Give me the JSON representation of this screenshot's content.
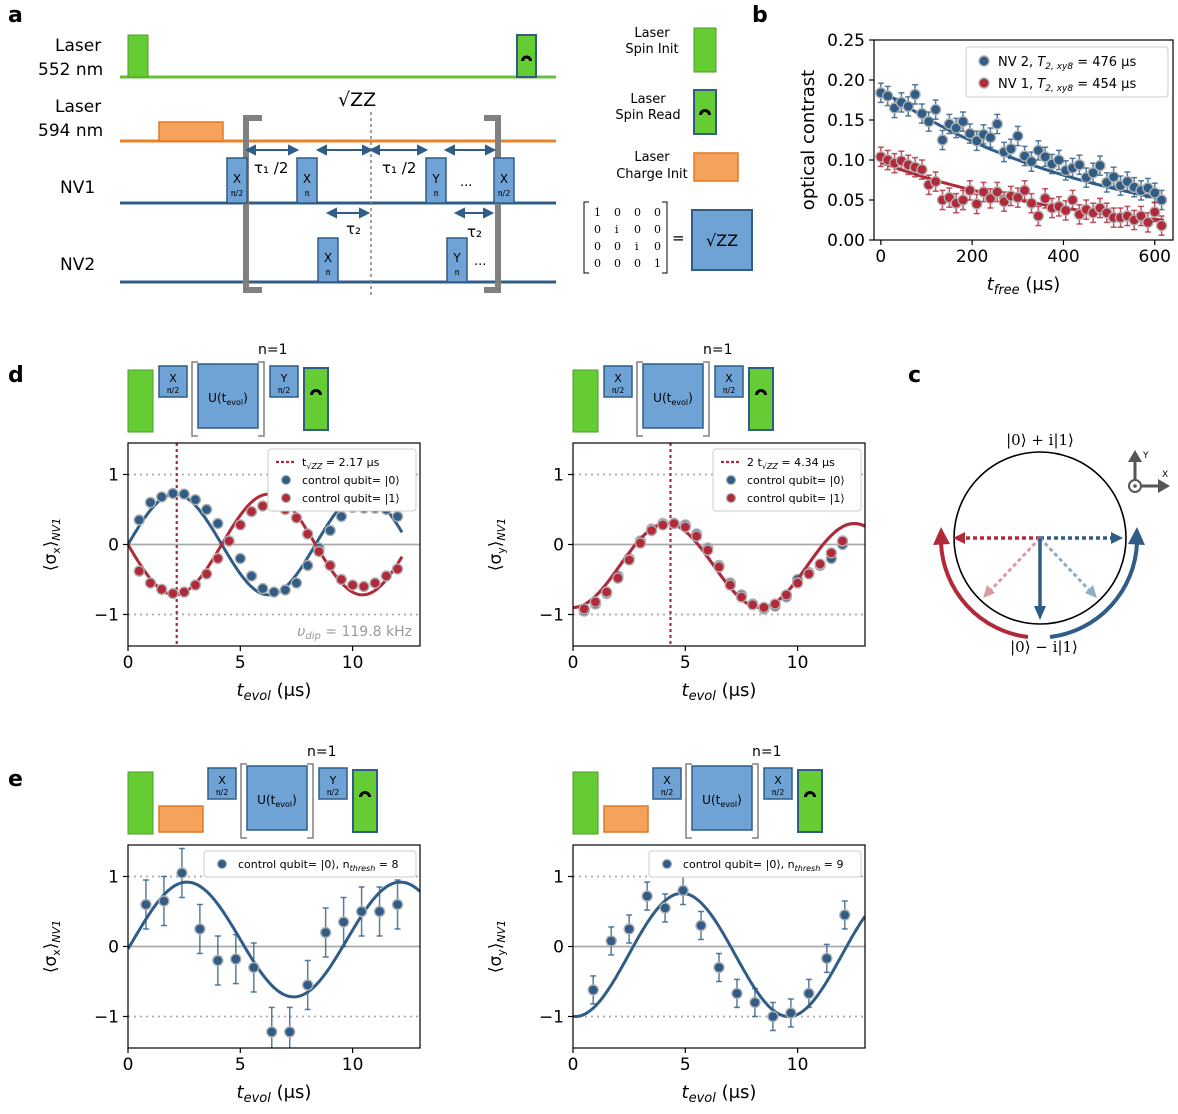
{
  "panels": {
    "a": "a",
    "b": "b",
    "c": "c",
    "d": "d",
    "e": "e"
  },
  "seq_a": {
    "laser552": [
      "Laser",
      "552 nm"
    ],
    "laser594": [
      "Laser",
      "594 nm"
    ],
    "nv1": "NV1",
    "nv2": "NV2",
    "sqrt_zz": "√ZZ",
    "tau1_half": "τ₁ /2",
    "tau2": "τ₂",
    "ellipsis": "...",
    "pulses": {
      "x": "X",
      "y": "Y",
      "pi": "π",
      "pi_half": "π/2"
    },
    "legend": {
      "spin_init": [
        "Laser",
        "Spin Init"
      ],
      "spin_read": [
        "Laser",
        "Spin Read"
      ],
      "charge_init": [
        "Laser",
        "Charge Init"
      ]
    },
    "matrix": [
      [
        "1",
        "0",
        "0",
        "0"
      ],
      [
        "0",
        "i",
        "0",
        "0"
      ],
      [
        "0",
        "0",
        "i",
        "0"
      ],
      [
        "0",
        "0",
        "0",
        "1"
      ]
    ],
    "equals": "=",
    "matrix_box": "√ZZ"
  },
  "seq_boxes": {
    "u": "U(t",
    "u_sub": "evol",
    "u_close": ")",
    "n": "n=1",
    "x": "X",
    "y": "Y",
    "pi_half": "π/2"
  },
  "bloch": {
    "top": "|0⟩ + i|1⟩",
    "bottom": "|0⟩ − i|1⟩",
    "axis_y": "Y",
    "axis_x": "X",
    "colors": {
      "red": "#b22a3a",
      "blue": "#2f5d87",
      "red_light": "#d89aa3",
      "blue_light": "#8eadc8"
    }
  },
  "colors": {
    "blue": "#2f5d87",
    "red": "#b22a3a",
    "green": "#66cc33",
    "orange": "#f5a25d",
    "box": "#6fa3d5",
    "line_green": "#6abf3a",
    "line_orange": "#e8832a",
    "line_blue": "#2f5d87"
  },
  "chart_data": [
    {
      "id": "b",
      "type": "scatter",
      "xlabel": "t_free (μs)",
      "ylabel": "optical contrast",
      "xlim": [
        -15,
        640
      ],
      "ylim": [
        0.0,
        0.25
      ],
      "xticks": [
        0,
        200,
        400,
        600
      ],
      "yticks": [
        0.0,
        0.05,
        0.1,
        0.15,
        0.2,
        0.25
      ],
      "ytick_labels": [
        "0.00",
        "0.05",
        "0.10",
        "0.15",
        "0.20",
        "0.25"
      ],
      "legend": "top-right",
      "series": [
        {
          "name": "NV 2, T2,xy8 = 476 μs",
          "label_main": "NV 2, ",
          "label_T": "T",
          "label_sub": "2, xy8",
          "label_val": " = 476 μs",
          "color": "#2f5d87",
          "x": [
            0,
            15,
            30,
            45,
            60,
            75,
            90,
            105,
            120,
            135,
            150,
            165,
            180,
            195,
            210,
            225,
            240,
            255,
            270,
            285,
            300,
            315,
            330,
            345,
            360,
            375,
            390,
            405,
            420,
            435,
            450,
            465,
            480,
            495,
            510,
            525,
            540,
            555,
            570,
            585,
            600,
            615
          ],
          "y": [
            0.184,
            0.18,
            0.165,
            0.172,
            0.167,
            0.182,
            0.158,
            0.148,
            0.163,
            0.125,
            0.145,
            0.14,
            0.148,
            0.133,
            0.124,
            0.132,
            0.128,
            0.145,
            0.11,
            0.114,
            0.13,
            0.105,
            0.098,
            0.112,
            0.104,
            0.095,
            0.1,
            0.087,
            0.09,
            0.094,
            0.078,
            0.084,
            0.093,
            0.072,
            0.079,
            0.068,
            0.073,
            0.066,
            0.062,
            0.065,
            0.059,
            0.05
          ],
          "err": 0.012,
          "fit": {
            "a": 0.188,
            "T": 476
          }
        },
        {
          "name": "NV 1, T2,xy8 = 454 μs",
          "label_main": "NV 1, ",
          "label_T": "T",
          "label_sub": "2, xy8",
          "label_val": " = 454 μs",
          "color": "#b22a3a",
          "x": [
            0,
            15,
            30,
            45,
            60,
            75,
            90,
            105,
            120,
            135,
            150,
            165,
            180,
            195,
            210,
            225,
            240,
            255,
            270,
            285,
            300,
            315,
            330,
            345,
            360,
            375,
            390,
            405,
            420,
            435,
            450,
            465,
            480,
            495,
            510,
            525,
            540,
            555,
            570,
            585,
            600,
            615
          ],
          "y": [
            0.104,
            0.1,
            0.096,
            0.099,
            0.094,
            0.091,
            0.088,
            0.069,
            0.073,
            0.05,
            0.053,
            0.046,
            0.05,
            0.062,
            0.045,
            0.06,
            0.052,
            0.06,
            0.048,
            0.055,
            0.053,
            0.062,
            0.046,
            0.03,
            0.052,
            0.04,
            0.042,
            0.037,
            0.05,
            0.032,
            0.038,
            0.034,
            0.04,
            0.034,
            0.028,
            0.028,
            0.03,
            0.025,
            0.03,
            0.022,
            0.035,
            0.018
          ],
          "err": 0.012,
          "fit": {
            "a": 0.097,
            "T": 454
          }
        }
      ]
    },
    {
      "id": "d-left",
      "type": "scatter",
      "xlabel": "t_evol (μs)",
      "ylabel": "⟨σx⟩NV1",
      "xlim": [
        0,
        13
      ],
      "ylim": [
        -1.45,
        1.45
      ],
      "xticks": [
        0,
        5,
        10
      ],
      "yticks": [
        -1,
        0,
        1
      ],
      "ytick_labels": [
        "−1",
        "0",
        "1"
      ],
      "vline": 2.17,
      "annotation": "υ_dip = 119.8 kHz",
      "annotation_main": "υ",
      "annotation_sub": "dip",
      "annotation_val": " = 119.8 kHz",
      "legend": "top-right",
      "legend_entries": [
        {
          "kind": "vline",
          "parts": [
            "t",
            "√ZZ",
            " = 2.17 μs"
          ],
          "color": "#b22a3a"
        },
        {
          "kind": "point",
          "text": "control qubit= |0⟩",
          "color": "#2f5d87"
        },
        {
          "kind": "point",
          "text": "control qubit= |1⟩",
          "color": "#b22a3a"
        }
      ],
      "series": [
        {
          "name": "control qubit= |0⟩",
          "color": "#2f5d87",
          "sign": 1,
          "period": 8.35,
          "x": [
            0.5,
            1,
            1.5,
            2,
            2.5,
            3,
            3.5,
            4,
            4.5,
            5,
            5.5,
            6,
            6.5,
            7,
            7.5,
            8,
            8.5,
            9,
            9.5,
            10,
            10.5,
            11,
            11.5,
            12
          ],
          "y": [
            0.35,
            0.6,
            0.68,
            0.73,
            0.72,
            0.64,
            0.5,
            0.3,
            0.05,
            -0.2,
            -0.45,
            -0.63,
            -0.68,
            -0.65,
            -0.55,
            -0.3,
            -0.05,
            0.2,
            0.4,
            0.53,
            0.52,
            0.52,
            0.5,
            0.4
          ]
        },
        {
          "name": "control qubit= |1⟩",
          "color": "#b22a3a",
          "sign": -1,
          "period": 8.35,
          "x": [
            0.5,
            1,
            1.5,
            2,
            2.5,
            3,
            3.5,
            4,
            4.5,
            5,
            5.5,
            6,
            6.5,
            7,
            7.5,
            8,
            8.5,
            9,
            9.5,
            10,
            10.5,
            11,
            11.5,
            12
          ],
          "y": [
            -0.38,
            -0.55,
            -0.64,
            -0.7,
            -0.68,
            -0.58,
            -0.42,
            -0.2,
            0.05,
            0.28,
            0.47,
            0.55,
            0.55,
            0.5,
            0.38,
            0.15,
            -0.1,
            -0.3,
            -0.5,
            -0.58,
            -0.6,
            -0.55,
            -0.45,
            -0.35
          ]
        }
      ]
    },
    {
      "id": "d-right",
      "type": "scatter",
      "xlabel": "t_evol (μs)",
      "ylabel": "⟨σy⟩NV1",
      "xlim": [
        0,
        13
      ],
      "ylim": [
        -1.45,
        1.45
      ],
      "xticks": [
        0,
        5,
        10
      ],
      "yticks": [
        -1,
        0,
        1
      ],
      "ytick_labels": [
        "−1",
        "0",
        "1"
      ],
      "vline": 4.34,
      "legend": "top-right",
      "legend_entries": [
        {
          "kind": "vline",
          "parts": [
            "2 t",
            "√ZZ",
            " = 4.34 μs"
          ],
          "color": "#b22a3a"
        },
        {
          "kind": "point",
          "text": "control qubit= |0⟩",
          "color": "#2f5d87"
        },
        {
          "kind": "point",
          "text": "control qubit= |1⟩",
          "color": "#b22a3a"
        }
      ],
      "series": [
        {
          "name": "control qubit= |0⟩",
          "color": "#2f5d87",
          "x": [
            0.5,
            1,
            1.5,
            2,
            2.5,
            3,
            3.5,
            4,
            4.5,
            5,
            5.5,
            6,
            6.5,
            7,
            7.5,
            8,
            8.5,
            9,
            9.5,
            10,
            10.5,
            11,
            11.5,
            12
          ],
          "y": [
            -0.95,
            -0.85,
            -0.7,
            -0.45,
            -0.2,
            0.05,
            0.22,
            0.3,
            0.3,
            0.28,
            0.15,
            -0.05,
            -0.3,
            -0.55,
            -0.72,
            -0.85,
            -0.92,
            -0.88,
            -0.75,
            -0.5,
            -0.4,
            -0.3,
            -0.2,
            0.0
          ]
        },
        {
          "name": "control qubit= |1⟩",
          "color": "#b22a3a",
          "x": [
            0.5,
            1,
            1.5,
            2,
            2.5,
            3,
            3.5,
            4,
            4.5,
            5,
            5.5,
            6,
            6.5,
            7,
            7.5,
            8,
            8.5,
            9,
            9.5,
            10,
            10.5,
            11,
            11.5,
            12
          ],
          "y": [
            -0.92,
            -0.82,
            -0.68,
            -0.48,
            -0.22,
            0.02,
            0.2,
            0.28,
            0.3,
            0.25,
            0.12,
            -0.08,
            -0.32,
            -0.58,
            -0.75,
            -0.86,
            -0.9,
            -0.85,
            -0.72,
            -0.55,
            -0.42,
            -0.28,
            -0.12,
            0.05
          ]
        }
      ]
    },
    {
      "id": "e-left",
      "type": "scatter",
      "xlabel": "t_evol (μs)",
      "ylabel": "⟨σx⟩NV1",
      "xlim": [
        0,
        13
      ],
      "ylim": [
        -1.45,
        1.45
      ],
      "xticks": [
        0,
        5,
        10
      ],
      "yticks": [
        -1,
        0,
        1
      ],
      "ytick_labels": [
        "−1",
        "0",
        "1"
      ],
      "legend": "top-right",
      "legend_entries": [
        {
          "kind": "point",
          "parts": [
            "control qubit= |0⟩, n",
            "thresh",
            " = 8"
          ],
          "color": "#2f5d87"
        }
      ],
      "series": [
        {
          "name": "control qubit= |0⟩, n_thresh = 8",
          "color": "#2f5d87",
          "x": [
            0.8,
            1.6,
            2.4,
            3.2,
            4.0,
            4.8,
            5.6,
            6.4,
            7.2,
            8.0,
            8.8,
            9.6,
            10.4,
            11.2,
            12.0
          ],
          "y": [
            0.6,
            0.65,
            1.05,
            0.25,
            -0.2,
            -0.18,
            -0.3,
            -1.22,
            -1.22,
            -0.55,
            0.2,
            0.35,
            0.5,
            0.5,
            0.6
          ],
          "err": 0.35
        }
      ]
    },
    {
      "id": "e-right",
      "type": "scatter",
      "xlabel": "t_evol (μs)",
      "ylabel": "⟨σy⟩NV1",
      "xlim": [
        0,
        13
      ],
      "ylim": [
        -1.45,
        1.45
      ],
      "xticks": [
        0,
        5,
        10
      ],
      "yticks": [
        -1,
        0,
        1
      ],
      "ytick_labels": [
        "−1",
        "0",
        "1"
      ],
      "legend": "top-right",
      "legend_entries": [
        {
          "kind": "point",
          "parts": [
            "control qubit= |0⟩, n",
            "thresh",
            " = 9"
          ],
          "color": "#2f5d87"
        }
      ],
      "series": [
        {
          "name": "control qubit= |0⟩, n_thresh = 9",
          "color": "#2f5d87",
          "x": [
            0.9,
            1.7,
            2.5,
            3.3,
            4.1,
            4.9,
            5.7,
            6.5,
            7.3,
            8.1,
            8.9,
            9.7,
            10.5,
            11.3,
            12.1
          ],
          "y": [
            -0.62,
            0.08,
            0.25,
            0.72,
            0.55,
            0.8,
            0.3,
            -0.3,
            -0.67,
            -0.8,
            -1.0,
            -0.95,
            -0.67,
            -0.17,
            0.45
          ],
          "err": 0.2
        }
      ]
    }
  ]
}
